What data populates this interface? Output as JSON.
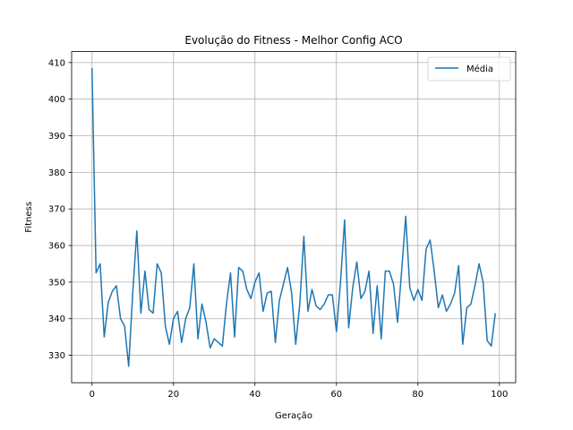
{
  "chart_data": {
    "type": "line",
    "title": "Evolução do Fitness - Melhor Config ACO",
    "xlabel": "Geração",
    "ylabel": "Fitness",
    "xlim": [
      -5,
      104
    ],
    "ylim": [
      322.5,
      413
    ],
    "xticks": [
      0,
      20,
      40,
      60,
      80,
      100
    ],
    "yticks": [
      330,
      340,
      350,
      360,
      370,
      380,
      390,
      400,
      410
    ],
    "grid": true,
    "legend_position": "top-right",
    "series": [
      {
        "name": "Média",
        "color": "#1f77b4",
        "x": [
          0,
          1,
          2,
          3,
          4,
          5,
          6,
          7,
          8,
          9,
          10,
          11,
          12,
          13,
          14,
          15,
          16,
          17,
          18,
          19,
          20,
          21,
          22,
          23,
          24,
          25,
          26,
          27,
          28,
          29,
          30,
          31,
          32,
          33,
          34,
          35,
          36,
          37,
          38,
          39,
          40,
          41,
          42,
          43,
          44,
          45,
          46,
          47,
          48,
          49,
          50,
          51,
          52,
          53,
          54,
          55,
          56,
          57,
          58,
          59,
          60,
          61,
          62,
          63,
          64,
          65,
          66,
          67,
          68,
          69,
          70,
          71,
          72,
          73,
          74,
          75,
          76,
          77,
          78,
          79,
          80,
          81,
          82,
          83,
          84,
          85,
          86,
          87,
          88,
          89,
          90,
          91,
          92,
          93,
          94,
          95,
          96,
          97,
          98,
          99
        ],
        "y": [
          408.5,
          352.5,
          355,
          335,
          344.5,
          347.5,
          349,
          340,
          338,
          327,
          347,
          364,
          341.5,
          353,
          342.5,
          341.5,
          355,
          352.5,
          338,
          333,
          340,
          342,
          333.5,
          340,
          343,
          355,
          334.5,
          344,
          339,
          332,
          334.5,
          333.5,
          332.5,
          344,
          352.5,
          335,
          354,
          353,
          348,
          345.5,
          350,
          352.5,
          342,
          347,
          347.5,
          333.5,
          345,
          349.5,
          354,
          347,
          333,
          344,
          362.5,
          342,
          348,
          343.5,
          342.5,
          344,
          346.5,
          346.5,
          336.5,
          350,
          367,
          337.5,
          348.5,
          355.5,
          345.5,
          347.5,
          353,
          336,
          349,
          334.5,
          353,
          353,
          349.5,
          339,
          353,
          368,
          348.5,
          345,
          348,
          345,
          359,
          361.5,
          353,
          343,
          346.5,
          342,
          344,
          347,
          354.5,
          333,
          343,
          344,
          349,
          355,
          350,
          334,
          332.5,
          341.5
        ]
      }
    ]
  }
}
